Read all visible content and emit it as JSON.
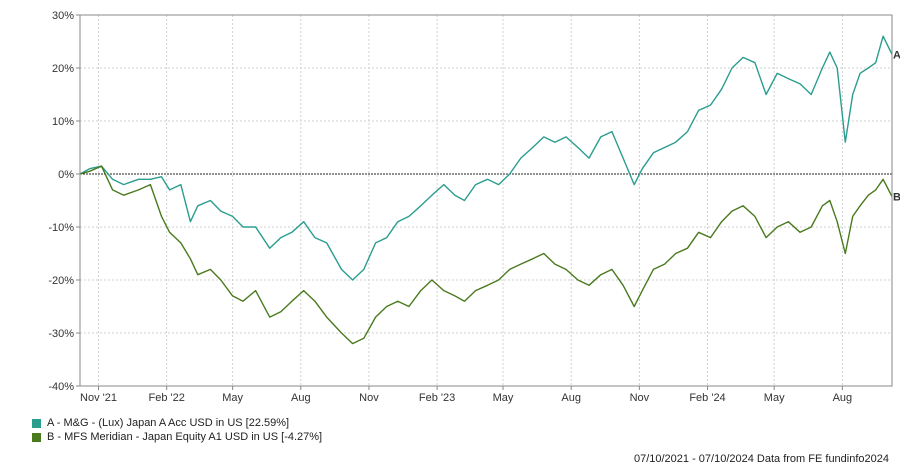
{
  "chart_data": {
    "type": "line",
    "ylim": [
      -40,
      30
    ],
    "y_ticks": [
      30,
      20,
      10,
      0,
      -10,
      -20,
      -30,
      -40
    ],
    "y_tick_labels": [
      "30%",
      "20%",
      "10%",
      "0%",
      "-10%",
      "-20%",
      "-30%",
      "-40%"
    ],
    "x_range": [
      "2021-10-07",
      "2024-10-07"
    ],
    "x_ticks": [
      {
        "date": "2021-11-01",
        "label": "Nov '21"
      },
      {
        "date": "2022-02-01",
        "label": "Feb '22"
      },
      {
        "date": "2022-05-01",
        "label": "May"
      },
      {
        "date": "2022-08-01",
        "label": "Aug"
      },
      {
        "date": "2022-11-01",
        "label": "Nov"
      },
      {
        "date": "2023-02-01",
        "label": "Feb '23"
      },
      {
        "date": "2023-05-01",
        "label": "May"
      },
      {
        "date": "2023-08-01",
        "label": "Aug"
      },
      {
        "date": "2023-11-01",
        "label": "Nov"
      },
      {
        "date": "2024-02-01",
        "label": "Feb '24"
      },
      {
        "date": "2024-05-01",
        "label": "May"
      },
      {
        "date": "2024-08-01",
        "label": "Aug"
      }
    ],
    "grid": true,
    "legend_position": "bottom-left",
    "series": [
      {
        "name": "A - M&G - (Lux) Japan A Acc USD in US [22.59%]",
        "end_label": "A",
        "color": "#2a9d8f",
        "points": [
          [
            "2021-10-07",
            0
          ],
          [
            "2021-10-20",
            1
          ],
          [
            "2021-11-05",
            1.5
          ],
          [
            "2021-11-20",
            -1
          ],
          [
            "2021-12-05",
            -2
          ],
          [
            "2021-12-25",
            -1
          ],
          [
            "2022-01-10",
            -1
          ],
          [
            "2022-01-25",
            -0.5
          ],
          [
            "2022-02-05",
            -3
          ],
          [
            "2022-02-20",
            -2
          ],
          [
            "2022-03-05",
            -9
          ],
          [
            "2022-03-15",
            -6
          ],
          [
            "2022-04-01",
            -5
          ],
          [
            "2022-04-15",
            -7
          ],
          [
            "2022-05-01",
            -8
          ],
          [
            "2022-05-15",
            -10
          ],
          [
            "2022-06-01",
            -10
          ],
          [
            "2022-06-20",
            -14
          ],
          [
            "2022-07-05",
            -12
          ],
          [
            "2022-07-20",
            -11
          ],
          [
            "2022-08-05",
            -9
          ],
          [
            "2022-08-20",
            -12
          ],
          [
            "2022-09-05",
            -13
          ],
          [
            "2022-09-25",
            -18
          ],
          [
            "2022-10-10",
            -20
          ],
          [
            "2022-10-25",
            -18
          ],
          [
            "2022-11-10",
            -13
          ],
          [
            "2022-11-25",
            -12
          ],
          [
            "2022-12-10",
            -9
          ],
          [
            "2022-12-25",
            -8
          ],
          [
            "2023-01-10",
            -6
          ],
          [
            "2023-01-25",
            -4
          ],
          [
            "2023-02-10",
            -2
          ],
          [
            "2023-02-25",
            -4
          ],
          [
            "2023-03-10",
            -5
          ],
          [
            "2023-03-25",
            -2
          ],
          [
            "2023-04-10",
            -1
          ],
          [
            "2023-04-25",
            -2
          ],
          [
            "2023-05-10",
            0
          ],
          [
            "2023-05-25",
            3
          ],
          [
            "2023-06-10",
            5
          ],
          [
            "2023-06-25",
            7
          ],
          [
            "2023-07-10",
            6
          ],
          [
            "2023-07-25",
            7
          ],
          [
            "2023-08-10",
            5
          ],
          [
            "2023-08-25",
            3
          ],
          [
            "2023-09-10",
            7
          ],
          [
            "2023-09-25",
            8
          ],
          [
            "2023-10-10",
            3
          ],
          [
            "2023-10-25",
            -2
          ],
          [
            "2023-11-05",
            1
          ],
          [
            "2023-11-20",
            4
          ],
          [
            "2023-12-05",
            5
          ],
          [
            "2023-12-20",
            6
          ],
          [
            "2024-01-05",
            8
          ],
          [
            "2024-01-20",
            12
          ],
          [
            "2024-02-05",
            13
          ],
          [
            "2024-02-20",
            16
          ],
          [
            "2024-03-05",
            20
          ],
          [
            "2024-03-20",
            22
          ],
          [
            "2024-04-05",
            21
          ],
          [
            "2024-04-20",
            15
          ],
          [
            "2024-05-05",
            19
          ],
          [
            "2024-05-20",
            18
          ],
          [
            "2024-06-05",
            17
          ],
          [
            "2024-06-20",
            15
          ],
          [
            "2024-07-05",
            20
          ],
          [
            "2024-07-15",
            23
          ],
          [
            "2024-07-25",
            20
          ],
          [
            "2024-08-05",
            6
          ],
          [
            "2024-08-15",
            15
          ],
          [
            "2024-08-25",
            19
          ],
          [
            "2024-09-05",
            20
          ],
          [
            "2024-09-15",
            21
          ],
          [
            "2024-09-25",
            26
          ],
          [
            "2024-10-07",
            22.59
          ]
        ]
      },
      {
        "name": "B - MFS Meridian - Japan Equity A1 USD in US [-4.27%]",
        "end_label": "B",
        "color": "#4a7a1e",
        "points": [
          [
            "2021-10-07",
            0
          ],
          [
            "2021-10-20",
            0.5
          ],
          [
            "2021-11-05",
            1.5
          ],
          [
            "2021-11-20",
            -3
          ],
          [
            "2021-12-05",
            -4
          ],
          [
            "2021-12-25",
            -3
          ],
          [
            "2022-01-10",
            -2
          ],
          [
            "2022-01-25",
            -8
          ],
          [
            "2022-02-05",
            -11
          ],
          [
            "2022-02-20",
            -13
          ],
          [
            "2022-03-05",
            -16
          ],
          [
            "2022-03-15",
            -19
          ],
          [
            "2022-04-01",
            -18
          ],
          [
            "2022-04-15",
            -20
          ],
          [
            "2022-05-01",
            -23
          ],
          [
            "2022-05-15",
            -24
          ],
          [
            "2022-06-01",
            -22
          ],
          [
            "2022-06-20",
            -27
          ],
          [
            "2022-07-05",
            -26
          ],
          [
            "2022-07-20",
            -24
          ],
          [
            "2022-08-05",
            -22
          ],
          [
            "2022-08-20",
            -24
          ],
          [
            "2022-09-05",
            -27
          ],
          [
            "2022-09-25",
            -30
          ],
          [
            "2022-10-10",
            -32
          ],
          [
            "2022-10-25",
            -31
          ],
          [
            "2022-11-10",
            -27
          ],
          [
            "2022-11-25",
            -25
          ],
          [
            "2022-12-10",
            -24
          ],
          [
            "2022-12-25",
            -25
          ],
          [
            "2023-01-10",
            -22
          ],
          [
            "2023-01-25",
            -20
          ],
          [
            "2023-02-10",
            -22
          ],
          [
            "2023-02-25",
            -23
          ],
          [
            "2023-03-10",
            -24
          ],
          [
            "2023-03-25",
            -22
          ],
          [
            "2023-04-10",
            -21
          ],
          [
            "2023-04-25",
            -20
          ],
          [
            "2023-05-10",
            -18
          ],
          [
            "2023-05-25",
            -17
          ],
          [
            "2023-06-10",
            -16
          ],
          [
            "2023-06-25",
            -15
          ],
          [
            "2023-07-10",
            -17
          ],
          [
            "2023-07-25",
            -18
          ],
          [
            "2023-08-10",
            -20
          ],
          [
            "2023-08-25",
            -21
          ],
          [
            "2023-09-10",
            -19
          ],
          [
            "2023-09-25",
            -18
          ],
          [
            "2023-10-10",
            -21
          ],
          [
            "2023-10-25",
            -25
          ],
          [
            "2023-11-05",
            -22
          ],
          [
            "2023-11-20",
            -18
          ],
          [
            "2023-12-05",
            -17
          ],
          [
            "2023-12-20",
            -15
          ],
          [
            "2024-01-05",
            -14
          ],
          [
            "2024-01-20",
            -11
          ],
          [
            "2024-02-05",
            -12
          ],
          [
            "2024-02-20",
            -9
          ],
          [
            "2024-03-05",
            -7
          ],
          [
            "2024-03-20",
            -6
          ],
          [
            "2024-04-05",
            -8
          ],
          [
            "2024-04-20",
            -12
          ],
          [
            "2024-05-05",
            -10
          ],
          [
            "2024-05-20",
            -9
          ],
          [
            "2024-06-05",
            -11
          ],
          [
            "2024-06-20",
            -10
          ],
          [
            "2024-07-05",
            -6
          ],
          [
            "2024-07-15",
            -5
          ],
          [
            "2024-07-25",
            -9
          ],
          [
            "2024-08-05",
            -15
          ],
          [
            "2024-08-15",
            -8
          ],
          [
            "2024-08-25",
            -6
          ],
          [
            "2024-09-05",
            -4
          ],
          [
            "2024-09-15",
            -3
          ],
          [
            "2024-09-25",
            -1
          ],
          [
            "2024-10-07",
            -4.27
          ]
        ]
      }
    ]
  },
  "footer": {
    "date_range": "07/10/2021 - 07/10/2024",
    "source": "Data from FE fundinfo2024"
  }
}
